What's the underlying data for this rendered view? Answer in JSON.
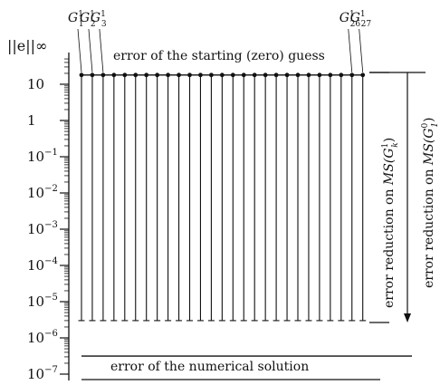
{
  "chart_data": {
    "type": "line",
    "scale": "log",
    "ylabel": "||e||∞",
    "ylim": [
      1e-07,
      100
    ],
    "ytick_values": [
      10,
      1,
      0.1,
      0.01,
      0.001,
      0.0001,
      1e-05,
      1e-06,
      1e-07
    ],
    "ytick_labels": [
      "10",
      "1",
      "10−1",
      "10−2",
      "10−3",
      "10−4",
      "10−5",
      "10−6",
      "10−7"
    ],
    "ytick_base": "10",
    "ytick_exponents": [
      "",
      "",
      "−1",
      "−2",
      "−3",
      "−4",
      "−5",
      "−6",
      "−7"
    ],
    "n_subdomains": 27,
    "subdomain_labels_shown": [
      "G1/1",
      "G1/2",
      "G1/3",
      "G1/26",
      "G1/27"
    ],
    "subdomain_label_parts": [
      {
        "base": "G",
        "sup": "1",
        "sub": "1"
      },
      {
        "base": "G",
        "sup": "1",
        "sub": "2"
      },
      {
        "base": "G",
        "sup": "1",
        "sub": "3"
      },
      {
        "base": "G",
        "sup": "1",
        "sub": "26"
      },
      {
        "base": "G",
        "sup": "1",
        "sub": "27"
      }
    ],
    "starting_error": 18,
    "reduced_error": 3e-06,
    "numerical_solution_error": 5e-07,
    "annotations": {
      "start": "error of the starting (zero) guess",
      "numerical": "error of the numerical solution",
      "reduction_k": "error reduction on MS(G1k)",
      "reduction_1": "error reduction on MS(G01)"
    },
    "annotation_parts": {
      "reduction_prefix": "error reduction on ",
      "ms": "MS",
      "k_sup": "1",
      "k_sub": "k",
      "one_sup": "0",
      "one_sub": "1"
    }
  }
}
